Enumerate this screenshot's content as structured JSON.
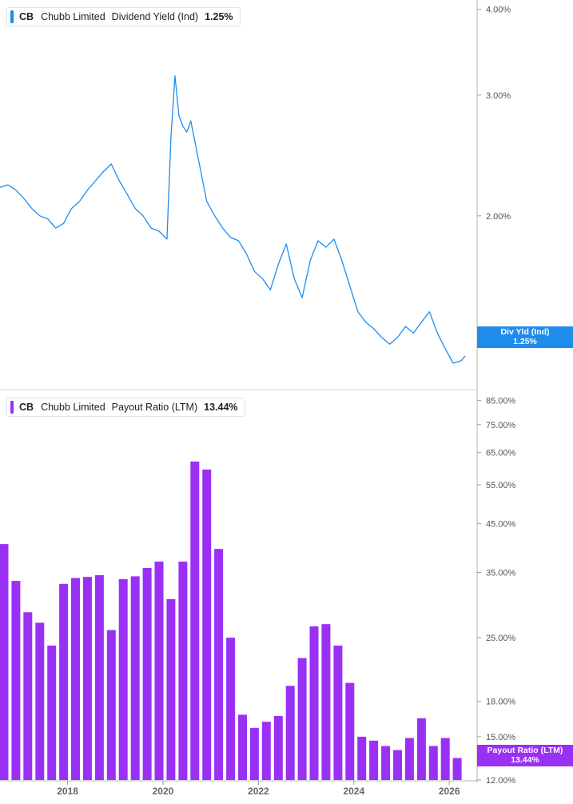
{
  "panels": [
    {
      "ticker": "CB",
      "company": "Chubb Limited",
      "metric": "Dividend Yield (Ind)",
      "current_value": "1.25%",
      "tag_label": "Div Yld (Ind)",
      "tag_value": "1.25%",
      "color": "#1f8ceb"
    },
    {
      "ticker": "CB",
      "company": "Chubb Limited",
      "metric": "Payout Ratio (LTM)",
      "current_value": "13.44%",
      "tag_label": "Payout Ratio (LTM)",
      "tag_value": "13.44%",
      "color": "#9b30f5"
    }
  ],
  "chart_data": [
    {
      "type": "line",
      "series": [
        {
          "name": "Dividend Yield (Ind)",
          "x": [
            "2016-08",
            "2016-10",
            "2016-12",
            "2017-02",
            "2017-04",
            "2017-06",
            "2017-08",
            "2017-10",
            "2017-12",
            "2018-02",
            "2018-04",
            "2018-06",
            "2018-08",
            "2018-10",
            "2018-12",
            "2019-02",
            "2019-04",
            "2019-06",
            "2019-08",
            "2019-10",
            "2019-12",
            "2020-02",
            "2020-03",
            "2020-04",
            "2020-05",
            "2020-06",
            "2020-07",
            "2020-08",
            "2020-10",
            "2020-12",
            "2021-02",
            "2021-04",
            "2021-06",
            "2021-08",
            "2021-10",
            "2021-12",
            "2022-02",
            "2022-04",
            "2022-06",
            "2022-08",
            "2022-10",
            "2022-12",
            "2023-02",
            "2023-04",
            "2023-06",
            "2023-08",
            "2023-10",
            "2023-12",
            "2024-02",
            "2024-04",
            "2024-06",
            "2024-08",
            "2024-10",
            "2024-12",
            "2025-02",
            "2025-04",
            "2025-06",
            "2025-08",
            "2025-10",
            "2025-12",
            "2026-02",
            "2026-04",
            "2026-05"
          ],
          "y": [
            2.2,
            2.22,
            2.18,
            2.12,
            2.05,
            2.0,
            1.98,
            1.92,
            1.95,
            2.05,
            2.1,
            2.18,
            2.25,
            2.32,
            2.38,
            2.25,
            2.15,
            2.05,
            2.0,
            1.92,
            1.9,
            1.85,
            2.6,
            3.2,
            2.8,
            2.7,
            2.65,
            2.75,
            2.4,
            2.1,
            2.0,
            1.92,
            1.86,
            1.84,
            1.76,
            1.66,
            1.62,
            1.56,
            1.7,
            1.82,
            1.62,
            1.52,
            1.72,
            1.84,
            1.8,
            1.85,
            1.72,
            1.58,
            1.45,
            1.4,
            1.37,
            1.33,
            1.3,
            1.33,
            1.38,
            1.35,
            1.4,
            1.45,
            1.35,
            1.28,
            1.22,
            1.23,
            1.25
          ],
          "color": "#1f8ceb"
        }
      ],
      "y_scale": "log",
      "ylim": [
        1.15,
        4.05
      ],
      "yticks": [
        "4.00%",
        "3.00%",
        "2.00%"
      ],
      "ytick_values": [
        4.0,
        3.0,
        2.0
      ],
      "grid": false,
      "legend": "top-left"
    },
    {
      "type": "bar",
      "x": [
        "2016-09",
        "2016-12",
        "2017-03",
        "2017-06",
        "2017-09",
        "2017-12",
        "2018-03",
        "2018-06",
        "2018-09",
        "2018-12",
        "2019-03",
        "2019-06",
        "2019-09",
        "2019-12",
        "2020-03",
        "2020-06",
        "2020-09",
        "2020-12",
        "2021-03",
        "2021-06",
        "2021-09",
        "2021-12",
        "2022-03",
        "2022-06",
        "2022-09",
        "2022-12",
        "2023-03",
        "2023-06",
        "2023-09",
        "2023-12",
        "2024-03",
        "2024-06",
        "2024-09",
        "2024-12",
        "2025-03",
        "2025-06",
        "2025-09",
        "2025-12",
        "2026-03"
      ],
      "series": [
        {
          "name": "Payout Ratio (LTM)",
          "values": [
            40.5,
            33.5,
            28.5,
            27.0,
            24.0,
            33.0,
            34.0,
            34.2,
            34.5,
            26.0,
            33.8,
            34.3,
            35.8,
            37.0,
            30.5,
            37.0,
            62.0,
            59.5,
            39.5,
            25.0,
            16.8,
            15.7,
            16.2,
            16.7,
            19.5,
            22.5,
            26.5,
            26.8,
            24.0,
            19.8,
            15.0,
            14.7,
            14.3,
            14.0,
            14.9,
            16.5,
            14.3,
            14.9,
            13.44
          ]
        }
      ],
      "color": "#9b30f5",
      "y_scale": "log",
      "ylim": [
        12.0,
        88.0
      ],
      "yticks": [
        "85.00%",
        "75.00%",
        "65.00%",
        "55.00%",
        "45.00%",
        "35.00%",
        "25.00%",
        "18.00%",
        "15.00%",
        "12.00%"
      ],
      "ytick_values": [
        85,
        75,
        65,
        55,
        45,
        35,
        25,
        18,
        15,
        12
      ],
      "grid": false,
      "legend": "top-left"
    }
  ],
  "x_axis": {
    "labels": [
      "2018",
      "2020",
      "2022",
      "2024",
      "2026"
    ],
    "label_dates": [
      "2018-01",
      "2020-01",
      "2022-01",
      "2024-01",
      "2026-01"
    ],
    "range": [
      "2016-08",
      "2026-08"
    ]
  }
}
